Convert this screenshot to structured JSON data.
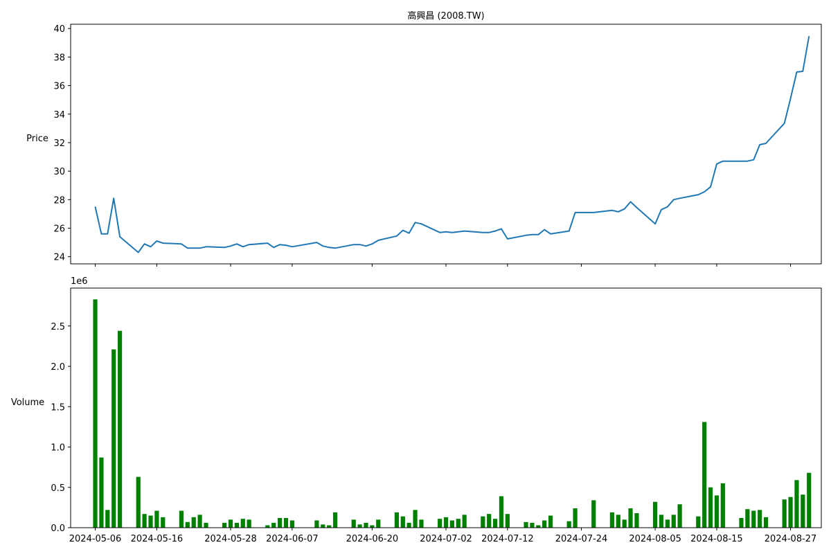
{
  "chart_data": [
    {
      "type": "line",
      "title": "高興昌 (2008.TW)",
      "ylabel": "Price",
      "ylabel_color": "#0000ff",
      "line_color": "#1f77b4",
      "ylim": [
        23.5,
        40.3
      ],
      "yticks": [
        24,
        26,
        28,
        30,
        32,
        34,
        36,
        38,
        40
      ],
      "x_range": [
        "2024-05-02",
        "2024-09-01"
      ],
      "xticks": [
        "2024-05-06",
        "2024-05-16",
        "2024-05-28",
        "2024-06-07",
        "2024-06-20",
        "2024-07-02",
        "2024-07-12",
        "2024-07-24",
        "2024-08-05",
        "2024-08-15",
        "2024-08-27"
      ],
      "show_xtick_labels": false,
      "x": [
        "2024-05-06",
        "2024-05-07",
        "2024-05-08",
        "2024-05-09",
        "2024-05-10",
        "2024-05-13",
        "2024-05-14",
        "2024-05-15",
        "2024-05-16",
        "2024-05-17",
        "2024-05-20",
        "2024-05-21",
        "2024-05-22",
        "2024-05-23",
        "2024-05-24",
        "2024-05-27",
        "2024-05-28",
        "2024-05-29",
        "2024-05-30",
        "2024-05-31",
        "2024-06-03",
        "2024-06-04",
        "2024-06-05",
        "2024-06-06",
        "2024-06-07",
        "2024-06-11",
        "2024-06-12",
        "2024-06-13",
        "2024-06-14",
        "2024-06-17",
        "2024-06-18",
        "2024-06-19",
        "2024-06-20",
        "2024-06-21",
        "2024-06-24",
        "2024-06-25",
        "2024-06-26",
        "2024-06-27",
        "2024-06-28",
        "2024-07-01",
        "2024-07-02",
        "2024-07-03",
        "2024-07-04",
        "2024-07-05",
        "2024-07-08",
        "2024-07-09",
        "2024-07-10",
        "2024-07-11",
        "2024-07-12",
        "2024-07-15",
        "2024-07-16",
        "2024-07-17",
        "2024-07-18",
        "2024-07-19",
        "2024-07-22",
        "2024-07-23",
        "2024-07-26",
        "2024-07-29",
        "2024-07-30",
        "2024-07-31",
        "2024-08-01",
        "2024-08-02",
        "2024-08-05",
        "2024-08-06",
        "2024-08-07",
        "2024-08-08",
        "2024-08-09",
        "2024-08-12",
        "2024-08-13",
        "2024-08-14",
        "2024-08-15",
        "2024-08-16",
        "2024-08-19",
        "2024-08-20",
        "2024-08-21",
        "2024-08-22",
        "2024-08-23",
        "2024-08-26",
        "2024-08-27",
        "2024-08-28",
        "2024-08-29",
        "2024-08-30"
      ],
      "values": [
        27.5,
        25.6,
        25.6,
        28.1,
        25.4,
        24.3,
        24.9,
        24.7,
        25.1,
        24.95,
        24.9,
        24.6,
        24.6,
        24.6,
        24.7,
        24.65,
        24.75,
        24.9,
        24.7,
        24.85,
        24.95,
        24.65,
        24.85,
        24.8,
        24.7,
        25.0,
        24.75,
        24.65,
        24.6,
        24.85,
        24.85,
        24.75,
        24.9,
        25.15,
        25.45,
        25.85,
        25.65,
        26.4,
        26.3,
        25.7,
        25.75,
        25.7,
        25.75,
        25.8,
        25.7,
        25.7,
        25.8,
        25.95,
        25.25,
        25.5,
        25.55,
        25.55,
        25.9,
        25.6,
        25.8,
        27.1,
        27.1,
        27.25,
        27.15,
        27.35,
        27.85,
        27.45,
        26.3,
        27.3,
        27.5,
        28.0,
        28.1,
        28.35,
        28.55,
        28.9,
        30.5,
        30.7,
        30.7,
        30.7,
        30.8,
        31.85,
        31.95,
        33.35,
        35.1,
        36.95,
        37.0,
        39.45
      ]
    },
    {
      "type": "bar",
      "ylabel": "Volume",
      "ylabel_color": "#008000",
      "bar_color": "#008000",
      "offset_label": "1e6",
      "ylim": [
        0,
        2.97
      ],
      "yticks": [
        "0.0",
        "0.5",
        "1.0",
        "1.5",
        "2.0",
        "2.5"
      ],
      "x_range": [
        "2024-05-02",
        "2024-09-01"
      ],
      "xticks": [
        "2024-05-06",
        "2024-05-16",
        "2024-05-28",
        "2024-06-07",
        "2024-06-20",
        "2024-07-02",
        "2024-07-12",
        "2024-07-24",
        "2024-08-05",
        "2024-08-15",
        "2024-08-27"
      ],
      "x": [
        "2024-05-06",
        "2024-05-07",
        "2024-05-08",
        "2024-05-09",
        "2024-05-10",
        "2024-05-13",
        "2024-05-14",
        "2024-05-15",
        "2024-05-16",
        "2024-05-17",
        "2024-05-20",
        "2024-05-21",
        "2024-05-22",
        "2024-05-23",
        "2024-05-24",
        "2024-05-27",
        "2024-05-28",
        "2024-05-29",
        "2024-05-30",
        "2024-05-31",
        "2024-06-03",
        "2024-06-04",
        "2024-06-05",
        "2024-06-06",
        "2024-06-07",
        "2024-06-11",
        "2024-06-12",
        "2024-06-13",
        "2024-06-14",
        "2024-06-17",
        "2024-06-18",
        "2024-06-19",
        "2024-06-20",
        "2024-06-21",
        "2024-06-24",
        "2024-06-25",
        "2024-06-26",
        "2024-06-27",
        "2024-06-28",
        "2024-07-01",
        "2024-07-02",
        "2024-07-03",
        "2024-07-04",
        "2024-07-05",
        "2024-07-08",
        "2024-07-09",
        "2024-07-10",
        "2024-07-11",
        "2024-07-12",
        "2024-07-15",
        "2024-07-16",
        "2024-07-17",
        "2024-07-18",
        "2024-07-19",
        "2024-07-22",
        "2024-07-23",
        "2024-07-26",
        "2024-07-29",
        "2024-07-30",
        "2024-07-31",
        "2024-08-01",
        "2024-08-02",
        "2024-08-05",
        "2024-08-06",
        "2024-08-07",
        "2024-08-08",
        "2024-08-09",
        "2024-08-12",
        "2024-08-13",
        "2024-08-14",
        "2024-08-15",
        "2024-08-16",
        "2024-08-19",
        "2024-08-20",
        "2024-08-21",
        "2024-08-22",
        "2024-08-23",
        "2024-08-26",
        "2024-08-27",
        "2024-08-28",
        "2024-08-29",
        "2024-08-30"
      ],
      "values": [
        2.83,
        0.87,
        0.22,
        2.21,
        2.44,
        0.63,
        0.17,
        0.15,
        0.21,
        0.13,
        0.21,
        0.07,
        0.13,
        0.16,
        0.06,
        0.06,
        0.1,
        0.06,
        0.11,
        0.1,
        0.03,
        0.06,
        0.12,
        0.12,
        0.09,
        0.09,
        0.04,
        0.03,
        0.19,
        0.1,
        0.04,
        0.06,
        0.03,
        0.1,
        0.19,
        0.14,
        0.06,
        0.22,
        0.1,
        0.11,
        0.13,
        0.09,
        0.11,
        0.16,
        0.14,
        0.17,
        0.11,
        0.39,
        0.17,
        0.07,
        0.06,
        0.03,
        0.09,
        0.15,
        0.08,
        0.24,
        0.34,
        0.19,
        0.16,
        0.1,
        0.24,
        0.18,
        0.32,
        0.16,
        0.1,
        0.16,
        0.29,
        0.14,
        1.31,
        0.5,
        0.4,
        0.55,
        0.12,
        0.23,
        0.21,
        0.22,
        0.13,
        0.35,
        0.38,
        0.59,
        0.41,
        0.68
      ]
    }
  ]
}
